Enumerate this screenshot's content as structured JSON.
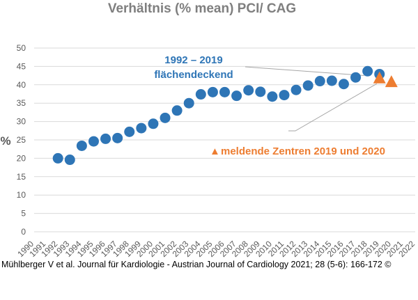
{
  "chart_data": {
    "type": "scatter",
    "title": "Verhältnis (% mean) PCI/ CAG",
    "ylabel": "%",
    "xlabel": "",
    "xlim": [
      1990,
      2022
    ],
    "ylim": [
      0,
      50
    ],
    "y_ticks": [
      0,
      5,
      10,
      15,
      20,
      25,
      30,
      35,
      40,
      45,
      50
    ],
    "x_ticks": [
      1990,
      1991,
      1992,
      1993,
      1994,
      1995,
      1996,
      1997,
      1998,
      1999,
      2000,
      2001,
      2002,
      2003,
      2004,
      2005,
      2006,
      2007,
      2008,
      2009,
      2010,
      2011,
      2012,
      2013,
      2014,
      2015,
      2016,
      2017,
      2018,
      2019,
      2020,
      2021,
      2022
    ],
    "grid": "horizontal",
    "series": [
      {
        "marker": "circle",
        "color": "#2e75b6",
        "points": [
          {
            "x": 1992,
            "y": 20.0
          },
          {
            "x": 1993,
            "y": 19.6
          },
          {
            "x": 1994,
            "y": 23.4
          },
          {
            "x": 1995,
            "y": 24.6
          },
          {
            "x": 1996,
            "y": 25.3
          },
          {
            "x": 1997,
            "y": 25.5
          },
          {
            "x": 1998,
            "y": 27.2
          },
          {
            "x": 1999,
            "y": 28.2
          },
          {
            "x": 2000,
            "y": 29.4
          },
          {
            "x": 2001,
            "y": 31.0
          },
          {
            "x": 2002,
            "y": 33.0
          },
          {
            "x": 2003,
            "y": 35.0
          },
          {
            "x": 2004,
            "y": 37.4
          },
          {
            "x": 2005,
            "y": 38.0
          },
          {
            "x": 2006,
            "y": 38.0
          },
          {
            "x": 2007,
            "y": 37.0
          },
          {
            "x": 2008,
            "y": 38.5
          },
          {
            "x": 2009,
            "y": 38.1
          },
          {
            "x": 2010,
            "y": 36.8
          },
          {
            "x": 2011,
            "y": 37.2
          },
          {
            "x": 2012,
            "y": 38.6
          },
          {
            "x": 2013,
            "y": 39.8
          },
          {
            "x": 2014,
            "y": 41.0
          },
          {
            "x": 2015,
            "y": 41.1
          },
          {
            "x": 2016,
            "y": 40.2
          },
          {
            "x": 2017,
            "y": 42.0
          },
          {
            "x": 2018,
            "y": 43.7
          },
          {
            "x": 2019,
            "y": 42.9
          }
        ]
      },
      {
        "marker": "triangle",
        "color": "#ed7d31",
        "points": [
          {
            "x": 2019,
            "y": 41.8
          },
          {
            "x": 2020,
            "y": 40.8
          }
        ]
      }
    ],
    "annotations": {
      "blue_line1": "1992 – 2019",
      "blue_line2": "flächendeckend",
      "orange_marker": "▲",
      "orange_text": "meldende Zentren 2019 und 2020"
    },
    "colors": {
      "blue": "#2e75b6",
      "orange": "#ed7d31",
      "grid": "#d9d9d9",
      "title": "#7f7f7f",
      "ticks": "#595959"
    }
  },
  "citation": "Mühlberger V et al. Journal für Kardiologie - Austrian Journal of Cardiology 2021; 28 (5-6): 166-172 ©"
}
